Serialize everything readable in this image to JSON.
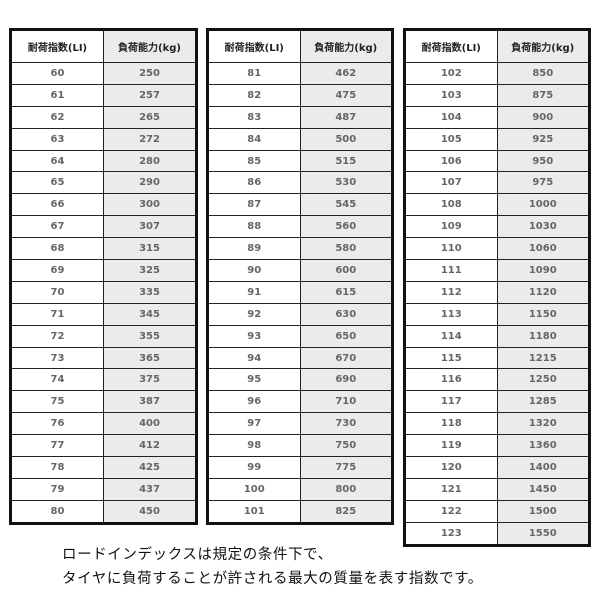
{
  "headers": {
    "index": "耐荷指数(LI)",
    "load": "負荷能力(kg)"
  },
  "tables": [
    {
      "rows": [
        [
          60,
          250
        ],
        [
          61,
          257
        ],
        [
          62,
          265
        ],
        [
          63,
          272
        ],
        [
          64,
          280
        ],
        [
          65,
          290
        ],
        [
          66,
          300
        ],
        [
          67,
          307
        ],
        [
          68,
          315
        ],
        [
          69,
          325
        ],
        [
          70,
          335
        ],
        [
          71,
          345
        ],
        [
          72,
          355
        ],
        [
          73,
          365
        ],
        [
          74,
          375
        ],
        [
          75,
          387
        ],
        [
          76,
          400
        ],
        [
          77,
          412
        ],
        [
          78,
          425
        ],
        [
          79,
          437
        ],
        [
          80,
          450
        ]
      ]
    },
    {
      "rows": [
        [
          81,
          462
        ],
        [
          82,
          475
        ],
        [
          83,
          487
        ],
        [
          84,
          500
        ],
        [
          85,
          515
        ],
        [
          86,
          530
        ],
        [
          87,
          545
        ],
        [
          88,
          560
        ],
        [
          89,
          580
        ],
        [
          90,
          600
        ],
        [
          91,
          615
        ],
        [
          92,
          630
        ],
        [
          93,
          650
        ],
        [
          94,
          670
        ],
        [
          95,
          690
        ],
        [
          96,
          710
        ],
        [
          97,
          730
        ],
        [
          98,
          750
        ],
        [
          99,
          775
        ],
        [
          100,
          800
        ],
        [
          101,
          825
        ]
      ]
    },
    {
      "rows": [
        [
          102,
          850
        ],
        [
          103,
          875
        ],
        [
          104,
          900
        ],
        [
          105,
          925
        ],
        [
          106,
          950
        ],
        [
          107,
          975
        ],
        [
          108,
          1000
        ],
        [
          109,
          1030
        ],
        [
          110,
          1060
        ],
        [
          111,
          1090
        ],
        [
          112,
          1120
        ],
        [
          113,
          1150
        ],
        [
          114,
          1180
        ],
        [
          115,
          1215
        ],
        [
          116,
          1250
        ],
        [
          117,
          1285
        ],
        [
          118,
          1320
        ],
        [
          119,
          1360
        ],
        [
          120,
          1400
        ],
        [
          121,
          1450
        ],
        [
          122,
          1500
        ],
        [
          123,
          1550
        ]
      ]
    }
  ],
  "caption": {
    "line1": "ロードインデックスは規定の条件下で、",
    "line2": "タイヤに負荷することが許される最大の質量を表す指数です。"
  }
}
